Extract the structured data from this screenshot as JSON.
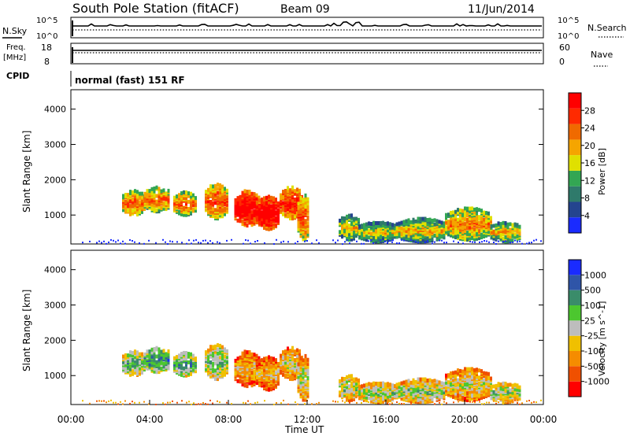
{
  "header": {
    "station": "South Pole Station (fitACF)",
    "beam": "Beam 09",
    "date": "11/Jun/2014"
  },
  "noise_panel": {
    "left_label": "N.Sky",
    "right_label": "N.Search",
    "ticks": [
      "10^5",
      "10^0"
    ]
  },
  "freq_panel": {
    "left_label_1": "Freq.",
    "left_label_2": "[MHz]",
    "left_ticks": [
      "18",
      "8"
    ],
    "right_label": "Nave",
    "right_ticks": [
      "60",
      "0"
    ]
  },
  "cpid": {
    "label": "CPID",
    "value": "normal (fast) 151 RF"
  },
  "colors": {
    "power_scale": [
      "#1a2bff",
      "#24448f",
      "#2f7a6b",
      "#33a653",
      "#e0e000",
      "#f5a500",
      "#f06a00",
      "#ff2a00",
      "#ff0000"
    ],
    "velocity_scale": [
      "#1a2bff",
      "#2f55a8",
      "#3a8c6a",
      "#4cc72f",
      "#bdbdbd",
      "#f0c000",
      "#f58c00",
      "#f05000",
      "#ff0000"
    ]
  },
  "chart_data": [
    {
      "type": "heatmap",
      "name": "power",
      "ylabel": "Slant Range [km]",
      "ylim": [
        180,
        4550
      ],
      "yticks": [
        "1000",
        "2000",
        "3000",
        "4000"
      ],
      "xlim": [
        0,
        24
      ],
      "colorbar_label": "Power [dB]",
      "colorbar_ticks": [
        "4",
        "8",
        "12",
        "16",
        "20",
        "24",
        "28"
      ],
      "colorbar_range": [
        0,
        32
      ]
    },
    {
      "type": "heatmap",
      "name": "velocity",
      "ylabel": "Slant Range [km]",
      "ylim": [
        180,
        4550
      ],
      "yticks": [
        "1000",
        "2000",
        "3000",
        "4000"
      ],
      "xlabel": "Time UT",
      "xticks": [
        "00:00",
        "04:00",
        "08:00",
        "12:00",
        "16:00",
        "20:00",
        "00:00"
      ],
      "xlim": [
        0,
        24
      ],
      "colorbar_label": "Velocity [m s^-1]",
      "colorbar_ticks": [
        "1000",
        "500",
        "100",
        "25",
        "-25",
        "-100",
        "-500",
        "-1000"
      ]
    }
  ]
}
